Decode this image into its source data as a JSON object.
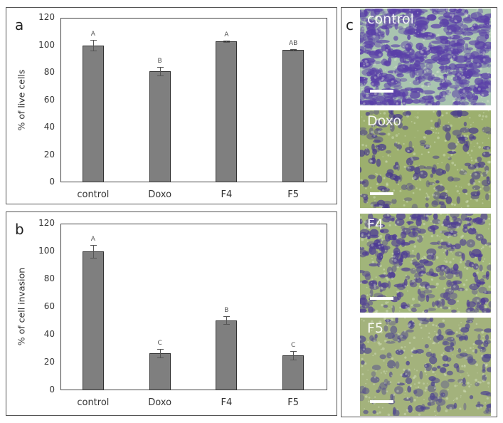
{
  "panels": {
    "a": {
      "letter": "a",
      "chart_title": "",
      "ylabel": "% of live cells"
    },
    "b": {
      "letter": "b",
      "chart_title": "",
      "ylabel": "% of cell invasion"
    },
    "c": {
      "letter": "c",
      "images": [
        {
          "label": "control",
          "stain_density": "high",
          "base_color": "#a9c4b0",
          "stain_color": "#5a3fa8"
        },
        {
          "label": "Doxo",
          "stain_density": "low",
          "base_color": "#9caf6e",
          "stain_color": "#4a3c8c"
        },
        {
          "label": "F4",
          "stain_density": "medium",
          "base_color": "#a1b57a",
          "stain_color": "#4e3c95"
        },
        {
          "label": "F5",
          "stain_density": "low",
          "base_color": "#a3b27c",
          "stain_color": "#4f4690"
        }
      ]
    }
  },
  "yticks": [
    "120",
    "100",
    "80",
    "60",
    "40",
    "20",
    "0"
  ],
  "colors": {
    "bar_fill": "#7f7f7f",
    "bar_border": "#333333",
    "sig_text": "#555555"
  },
  "chart_data": [
    {
      "type": "bar",
      "panel": "a",
      "title": "",
      "xlabel": "",
      "ylabel": "% of live cells",
      "categories": [
        "control",
        "Doxo",
        "F4",
        "F5"
      ],
      "values": [
        100,
        81,
        103,
        96.5
      ],
      "errors": [
        4,
        3,
        0.5,
        0.5
      ],
      "significance_letters": [
        "A",
        "B",
        "A",
        "AB"
      ],
      "ylim": [
        0,
        120
      ],
      "yticks": [
        0,
        20,
        40,
        60,
        80,
        100,
        120
      ],
      "grid": false,
      "legend": null
    },
    {
      "type": "bar",
      "panel": "b",
      "title": "",
      "xlabel": "",
      "ylabel": "% of cell invasion",
      "categories": [
        "control",
        "Doxo",
        "F4",
        "F5"
      ],
      "values": [
        100,
        26.5,
        50.5,
        25
      ],
      "errors": [
        4.5,
        3,
        3,
        3
      ],
      "significance_letters": [
        "A",
        "C",
        "B",
        "C"
      ],
      "ylim": [
        0,
        120
      ],
      "yticks": [
        0,
        20,
        40,
        60,
        80,
        100,
        120
      ],
      "grid": false,
      "legend": null
    }
  ]
}
